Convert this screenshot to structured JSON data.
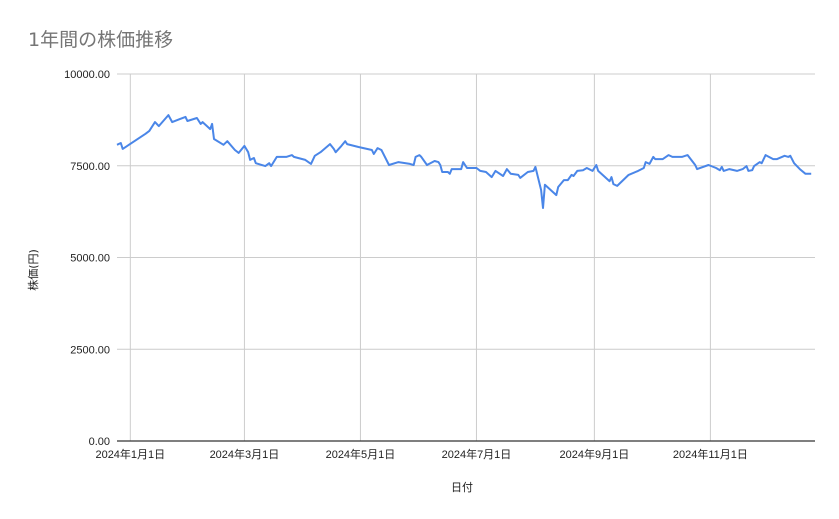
{
  "chart_data": {
    "type": "line",
    "title": "1年間の株価推移",
    "xlabel": "日付",
    "ylabel": "株価(円)",
    "ylim": [
      0,
      10000
    ],
    "xlim": [
      "2023-12-25",
      "2024-12-26"
    ],
    "grid": true,
    "legend": "none",
    "line_color": "#4a86e8",
    "yticks": [
      "0.00",
      "2500.00",
      "5000.00",
      "7500.00",
      "10000.00"
    ],
    "ytick_values": [
      0,
      2500,
      5000,
      7500,
      10000
    ],
    "xticks": [
      {
        "date": "2024-01-01",
        "label": "2024年1月1日"
      },
      {
        "date": "2024-03-01",
        "label": "2024年3月1日"
      },
      {
        "date": "2024-05-01",
        "label": "2024年5月1日"
      },
      {
        "date": "2024-07-01",
        "label": "2024年7月1日"
      },
      {
        "date": "2024-09-01",
        "label": "2024年9月1日"
      },
      {
        "date": "2024-11-01",
        "label": "2024年11月1日"
      }
    ],
    "series": [
      {
        "points": [
          [
            "2023-12-25",
            8070
          ],
          [
            "2023-12-27",
            8120
          ],
          [
            "2023-12-28",
            7960
          ],
          [
            "2024-01-09",
            8370
          ],
          [
            "2024-01-11",
            8450
          ],
          [
            "2024-01-14",
            8690
          ],
          [
            "2024-01-16",
            8580
          ],
          [
            "2024-01-21",
            8880
          ],
          [
            "2024-01-23",
            8690
          ],
          [
            "2024-01-27",
            8770
          ],
          [
            "2024-01-30",
            8830
          ],
          [
            "2024-01-31",
            8720
          ],
          [
            "2024-02-05",
            8800
          ],
          [
            "2024-02-07",
            8640
          ],
          [
            "2024-02-08",
            8690
          ],
          [
            "2024-02-12",
            8500
          ],
          [
            "2024-02-13",
            8640
          ],
          [
            "2024-02-14",
            8230
          ],
          [
            "2024-02-19",
            8070
          ],
          [
            "2024-02-21",
            8170
          ],
          [
            "2024-02-25",
            7930
          ],
          [
            "2024-02-27",
            7850
          ],
          [
            "2024-03-01",
            8040
          ],
          [
            "2024-03-03",
            7870
          ],
          [
            "2024-03-04",
            7660
          ],
          [
            "2024-03-06",
            7710
          ],
          [
            "2024-03-07",
            7570
          ],
          [
            "2024-03-12",
            7490
          ],
          [
            "2024-03-14",
            7570
          ],
          [
            "2024-03-15",
            7490
          ],
          [
            "2024-03-18",
            7740
          ],
          [
            "2024-03-23",
            7740
          ],
          [
            "2024-03-26",
            7790
          ],
          [
            "2024-03-27",
            7740
          ],
          [
            "2024-04-02",
            7660
          ],
          [
            "2024-04-05",
            7550
          ],
          [
            "2024-04-07",
            7770
          ],
          [
            "2024-04-10",
            7870
          ],
          [
            "2024-04-15",
            8090
          ],
          [
            "2024-04-17",
            7960
          ],
          [
            "2024-04-18",
            7870
          ],
          [
            "2024-04-21",
            8040
          ],
          [
            "2024-04-23",
            8170
          ],
          [
            "2024-04-24",
            8090
          ],
          [
            "2024-04-30",
            8010
          ],
          [
            "2024-05-07",
            7930
          ],
          [
            "2024-05-08",
            7820
          ],
          [
            "2024-05-10",
            7980
          ],
          [
            "2024-05-12",
            7930
          ],
          [
            "2024-05-16",
            7520
          ],
          [
            "2024-05-21",
            7600
          ],
          [
            "2024-05-27",
            7550
          ],
          [
            "2024-05-29",
            7520
          ],
          [
            "2024-05-30",
            7740
          ],
          [
            "2024-06-01",
            7790
          ],
          [
            "2024-06-02",
            7740
          ],
          [
            "2024-06-05",
            7520
          ],
          [
            "2024-06-09",
            7630
          ],
          [
            "2024-06-11",
            7600
          ],
          [
            "2024-06-12",
            7520
          ],
          [
            "2024-06-13",
            7330
          ],
          [
            "2024-06-16",
            7330
          ],
          [
            "2024-06-17",
            7280
          ],
          [
            "2024-06-18",
            7410
          ],
          [
            "2024-06-23",
            7410
          ],
          [
            "2024-06-24",
            7600
          ],
          [
            "2024-06-26",
            7440
          ],
          [
            "2024-07-01",
            7440
          ],
          [
            "2024-07-03",
            7360
          ],
          [
            "2024-07-06",
            7330
          ],
          [
            "2024-07-09",
            7190
          ],
          [
            "2024-07-11",
            7360
          ],
          [
            "2024-07-15",
            7220
          ],
          [
            "2024-07-17",
            7410
          ],
          [
            "2024-07-19",
            7280
          ],
          [
            "2024-07-23",
            7250
          ],
          [
            "2024-07-24",
            7170
          ],
          [
            "2024-07-28",
            7330
          ],
          [
            "2024-07-31",
            7360
          ],
          [
            "2024-08-01",
            7470
          ],
          [
            "2024-08-04",
            6840
          ],
          [
            "2024-08-05",
            6350
          ],
          [
            "2024-08-06",
            6980
          ],
          [
            "2024-08-12",
            6700
          ],
          [
            "2024-08-13",
            6920
          ],
          [
            "2024-08-16",
            7110
          ],
          [
            "2024-08-18",
            7110
          ],
          [
            "2024-08-20",
            7250
          ],
          [
            "2024-08-21",
            7220
          ],
          [
            "2024-08-23",
            7360
          ],
          [
            "2024-08-26",
            7380
          ],
          [
            "2024-08-28",
            7440
          ],
          [
            "2024-08-31",
            7360
          ],
          [
            "2024-09-02",
            7520
          ],
          [
            "2024-09-03",
            7360
          ],
          [
            "2024-09-09",
            7080
          ],
          [
            "2024-09-10",
            7190
          ],
          [
            "2024-09-11",
            7000
          ],
          [
            "2024-09-13",
            6950
          ],
          [
            "2024-09-19",
            7250
          ],
          [
            "2024-09-24",
            7360
          ],
          [
            "2024-09-27",
            7440
          ],
          [
            "2024-09-28",
            7600
          ],
          [
            "2024-09-30",
            7550
          ],
          [
            "2024-10-02",
            7740
          ],
          [
            "2024-10-03",
            7680
          ],
          [
            "2024-10-07",
            7680
          ],
          [
            "2024-10-10",
            7790
          ],
          [
            "2024-10-12",
            7740
          ],
          [
            "2024-10-17",
            7740
          ],
          [
            "2024-10-20",
            7790
          ],
          [
            "2024-10-24",
            7520
          ],
          [
            "2024-10-25",
            7410
          ],
          [
            "2024-10-31",
            7520
          ],
          [
            "2024-11-04",
            7440
          ],
          [
            "2024-11-06",
            7380
          ],
          [
            "2024-11-07",
            7470
          ],
          [
            "2024-11-08",
            7360
          ],
          [
            "2024-11-11",
            7410
          ],
          [
            "2024-11-15",
            7360
          ],
          [
            "2024-11-18",
            7410
          ],
          [
            "2024-11-20",
            7490
          ],
          [
            "2024-11-21",
            7360
          ],
          [
            "2024-11-23",
            7380
          ],
          [
            "2024-11-24",
            7490
          ],
          [
            "2024-11-27",
            7600
          ],
          [
            "2024-11-28",
            7570
          ],
          [
            "2024-11-30",
            7790
          ],
          [
            "2024-12-04",
            7680
          ],
          [
            "2024-12-06",
            7680
          ],
          [
            "2024-12-10",
            7770
          ],
          [
            "2024-12-12",
            7740
          ],
          [
            "2024-12-13",
            7770
          ],
          [
            "2024-12-15",
            7570
          ],
          [
            "2024-12-18",
            7410
          ],
          [
            "2024-12-21",
            7280
          ],
          [
            "2024-12-24",
            7280
          ]
        ]
      }
    ]
  }
}
